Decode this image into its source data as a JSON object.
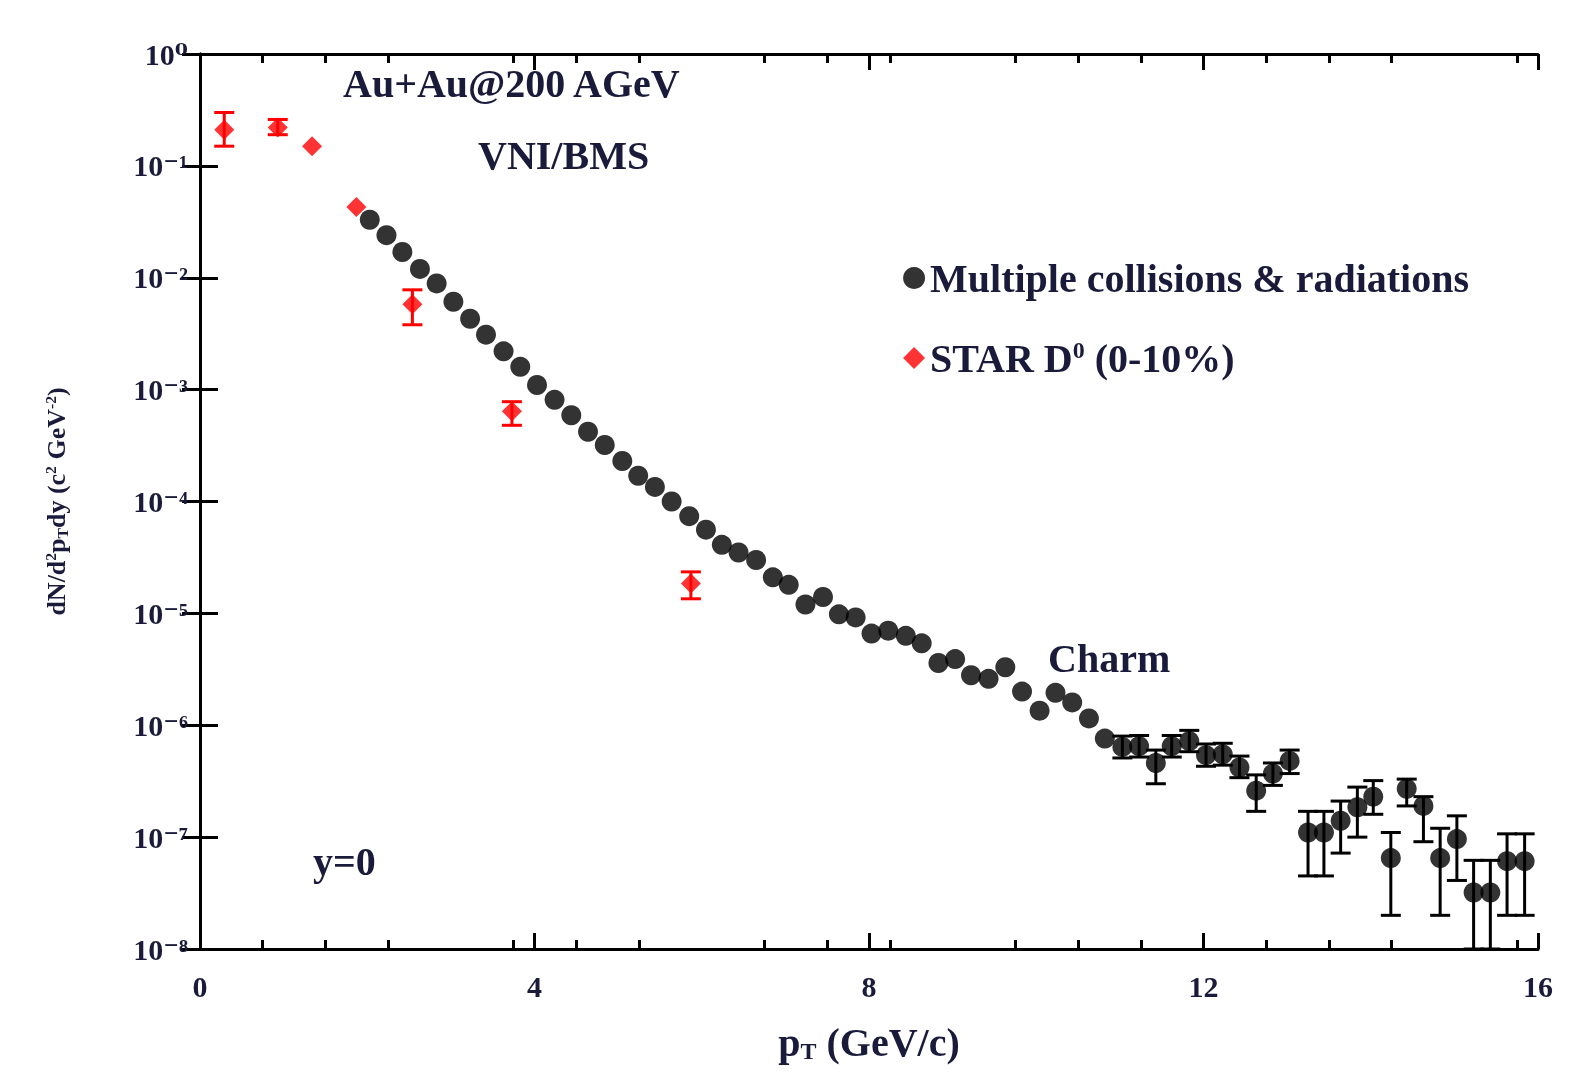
{
  "chart_data": {
    "type": "scatter",
    "title": "Au+Au@200 AGeV",
    "subtitle": "VNI/BMS",
    "xlabel": "p$_{T}$ (GeV/c)",
    "ylabel": "dN/d$^{2}$p$_{T}$dy (c$^{2}$ GeV$^{-2}$)",
    "annotations": [
      "Charm",
      "y=0"
    ],
    "log": "y",
    "grid": false,
    "legend": "top right",
    "xlim": [
      0,
      16
    ],
    "xticks": [
      0,
      4,
      8,
      12,
      16
    ],
    "ylim": [
      1e-08,
      1
    ],
    "yticks": [
      {
        "value": 1e-08,
        "label": "10⁻⁸"
      },
      {
        "value": 1e-07,
        "label": "10⁻⁷"
      },
      {
        "value": 1e-06,
        "label": "10⁻⁶"
      },
      {
        "value": 1e-05,
        "label": "10⁻⁵"
      },
      {
        "value": 0.0001,
        "label": "10⁻⁴"
      },
      {
        "value": 0.001,
        "label": "10⁻³"
      },
      {
        "value": 0.01,
        "label": "10⁻²"
      },
      {
        "value": 0.1,
        "label": "10⁻¹"
      },
      {
        "value": 1,
        "label": "10⁰"
      }
    ],
    "series": [
      {
        "name": "Multiple collisions & radiations",
        "color": "#000000",
        "marker": "circle",
        "x": [
          2.03,
          2.23,
          2.42,
          2.63,
          2.83,
          3.03,
          3.23,
          3.42,
          3.63,
          3.83,
          4.03,
          4.24,
          4.44,
          4.64,
          4.84,
          5.05,
          5.24,
          5.44,
          5.64,
          5.85,
          6.05,
          6.24,
          6.44,
          6.65,
          6.85,
          7.04,
          7.24,
          7.45,
          7.64,
          7.84,
          8.03,
          8.23,
          8.44,
          8.63,
          8.83,
          9.03,
          9.22,
          9.43,
          9.63,
          9.83,
          10.04,
          10.23,
          10.43,
          10.63,
          10.82,
          11.03,
          11.23,
          11.43,
          11.62,
          11.83,
          12.03,
          12.23,
          12.43,
          12.63,
          12.83,
          13.03,
          13.25,
          13.44,
          13.64,
          13.84,
          14.03,
          14.24,
          14.43,
          14.63,
          14.83,
          15.03,
          15.23,
          15.43,
          15.63,
          15.84
        ],
        "values": [
          0.033,
          0.024,
          0.017,
          0.012,
          0.0089,
          0.0061,
          0.0043,
          0.0031,
          0.0022,
          0.0016,
          0.0011,
          0.00081,
          0.00059,
          0.00042,
          0.00032,
          0.00023,
          0.00017,
          0.000135,
          0.0001,
          7.4e-05,
          5.6e-05,
          4.1e-05,
          3.5e-05,
          3e-05,
          2.1e-05,
          1.8e-05,
          1.2e-05,
          1.4e-05,
          9.8e-06,
          9.2e-06,
          6.6e-06,
          7e-06,
          6.3e-06,
          5.4e-06,
          3.6e-06,
          3.9e-06,
          2.8e-06,
          2.6e-06,
          3.3e-06,
          2e-06,
          1.35e-06,
          1.95e-06,
          1.6e-06,
          1.15e-06,
          7.6e-07,
          6.4e-07,
          6.5e-07,
          4.6e-07,
          6.5e-07,
          7.2e-07,
          5.4e-07,
          5.5e-07,
          4.2e-07,
          2.6e-07,
          3.7e-07,
          4.8e-07,
          1.1e-07,
          1.1e-07,
          1.4e-07,
          1.85e-07,
          2.3e-07,
          6.5e-08,
          2.7e-07,
          1.9e-07,
          6.5e-08,
          9.6e-08,
          3.2e-08,
          3.2e-08,
          6.1e-08,
          6.1e-08
        ],
        "errors": [
          null,
          null,
          null,
          null,
          null,
          null,
          null,
          null,
          null,
          null,
          null,
          null,
          null,
          null,
          null,
          null,
          null,
          null,
          null,
          null,
          null,
          null,
          null,
          null,
          null,
          null,
          null,
          null,
          null,
          null,
          null,
          null,
          null,
          null,
          null,
          null,
          null,
          null,
          null,
          null,
          null,
          null,
          null,
          null,
          null,
          [
            5.1e-07,
            8e-07
          ],
          [
            5.2e-07,
            8.1e-07
          ],
          [
            3e-07,
            6e-07
          ],
          [
            5.2e-07,
            8.1e-07
          ],
          [
            5.8e-07,
            9e-07
          ],
          [
            4.3e-07,
            6.8e-07
          ],
          [
            4.4e-07,
            6.9e-07
          ],
          [
            3.4e-07,
            5.3e-07
          ],
          [
            1.7e-07,
            3.6e-07
          ],
          [
            2.9e-07,
            4.6e-07
          ],
          [
            3.7e-07,
            6e-07
          ],
          [
            4.5e-08,
            1.7e-07
          ],
          [
            4.5e-08,
            1.7e-07
          ],
          [
            7.2e-08,
            2.1e-07
          ],
          [
            1e-07,
            2.8e-07
          ],
          [
            1.6e-07,
            3.2e-07
          ],
          [
            2e-08,
            1.1e-07
          ],
          [
            1.9e-07,
            3.3e-07
          ],
          [
            9.1e-08,
            2.3e-07
          ],
          [
            2e-08,
            1.2e-07
          ],
          [
            4.1e-08,
            1.55e-07
          ],
          [
            1e-08,
            6.2e-08
          ],
          [
            1e-08,
            6.2e-08
          ],
          [
            2e-08,
            1.07e-07
          ],
          [
            2e-08,
            1.07e-07
          ]
        ]
      },
      {
        "name": "STAR D$^{0}$ (0-10%)",
        "color": "#ff0000",
        "marker": "diamond",
        "x": [
          0.29,
          0.93,
          1.34,
          1.87,
          2.54,
          3.73,
          5.87
        ],
        "values": [
          0.21,
          0.22,
          0.15,
          0.043,
          0.0058,
          0.00064,
          1.85e-05
        ],
        "errors": [
          [
            0.15,
            0.3
          ],
          [
            0.19,
            0.26
          ],
          null,
          null,
          [
            0.0038,
            0.0078
          ],
          [
            0.00048,
            0.00078
          ],
          [
            1.35e-05,
            2.35e-05
          ]
        ]
      }
    ]
  }
}
